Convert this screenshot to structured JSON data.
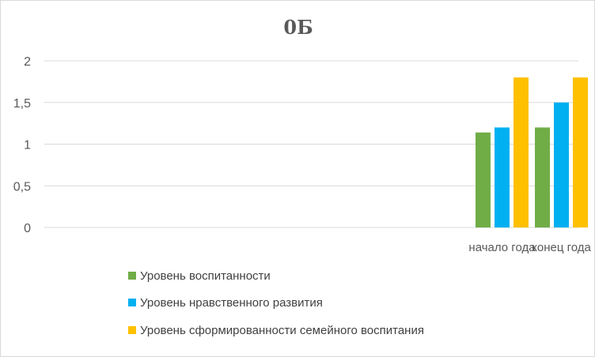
{
  "chart_data": {
    "type": "bar",
    "title": "0Б",
    "categories": [
      "",
      "",
      "",
      "",
      "",
      "",
      "",
      "начало года",
      "конец года"
    ],
    "series": [
      {
        "name": "Уровень воспитанности",
        "color": "#70ad47",
        "values": [
          null,
          null,
          null,
          null,
          null,
          null,
          null,
          1.14,
          1.2
        ]
      },
      {
        "name": "Уровень нравственного развития",
        "color": "#00b0f0",
        "values": [
          null,
          null,
          null,
          null,
          null,
          null,
          null,
          1.2,
          1.5
        ]
      },
      {
        "name": "Уровень сформированности семейного воспитания",
        "color": "#ffc000",
        "values": [
          null,
          null,
          null,
          null,
          null,
          null,
          null,
          1.8,
          1.8
        ]
      }
    ],
    "ylim": [
      0,
      2
    ],
    "yticks": [
      "0",
      "0,5",
      "1",
      "1,5",
      "2"
    ],
    "grid": true,
    "legend_position": "bottom"
  }
}
